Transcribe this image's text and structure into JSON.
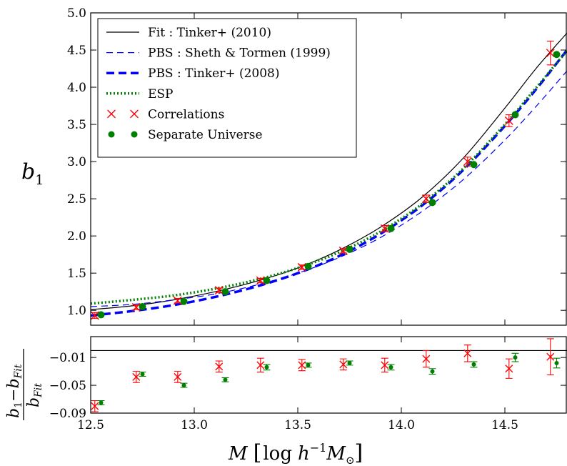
{
  "chart_data": [
    {
      "type": "line",
      "panel": "top",
      "ylabel": "b_1",
      "xlim": [
        12.5,
        14.8
      ],
      "ylim": [
        0.8,
        5.0
      ],
      "xticks": [
        12.5,
        13.0,
        13.5,
        14.0,
        14.5
      ],
      "xtick_labels": [
        "12.5",
        "13.0",
        "13.5",
        "14.0",
        "14.5"
      ],
      "yticks": [
        1.0,
        1.5,
        2.0,
        2.5,
        3.0,
        3.5,
        4.0,
        4.5,
        5.0
      ],
      "ytick_labels": [
        "1.0",
        "1.5",
        "2.0",
        "2.5",
        "3.0",
        "3.5",
        "4.0",
        "4.5",
        "5.0"
      ],
      "grid": false,
      "legend_position": "top-left",
      "series": [
        {
          "name": "Fit : Tinker+ (2010)",
          "style": "solid-thin",
          "color": "#000000",
          "x": [
            12.5,
            12.7,
            12.9,
            13.1,
            13.3,
            13.5,
            13.7,
            13.9,
            14.1,
            14.3,
            14.5,
            14.65,
            14.8
          ],
          "y": [
            1.01,
            1.06,
            1.14,
            1.25,
            1.39,
            1.57,
            1.81,
            2.12,
            2.52,
            3.05,
            3.72,
            4.25,
            4.73
          ]
        },
        {
          "name": "PBS : Sheth & Tormen (1999)",
          "style": "dashed-thin",
          "color": "#0000ff",
          "x": [
            12.5,
            12.7,
            12.9,
            13.1,
            13.3,
            13.5,
            13.7,
            13.9,
            14.1,
            14.3,
            14.5,
            14.65,
            14.8
          ],
          "y": [
            1.05,
            1.08,
            1.14,
            1.22,
            1.34,
            1.5,
            1.71,
            1.98,
            2.33,
            2.76,
            3.29,
            3.74,
            4.22
          ]
        },
        {
          "name": "PBS : Tinker+ (2008)",
          "style": "dashed-thick",
          "color": "#0000ff",
          "x": [
            12.5,
            12.7,
            12.9,
            13.1,
            13.3,
            13.5,
            13.7,
            13.9,
            14.1,
            14.3,
            14.5,
            14.65,
            14.8
          ],
          "y": [
            0.93,
            0.99,
            1.07,
            1.18,
            1.32,
            1.5,
            1.73,
            2.03,
            2.41,
            2.89,
            3.48,
            3.97,
            4.5
          ]
        },
        {
          "name": "ESP",
          "style": "dotted",
          "color": "#008000",
          "x": [
            12.5,
            12.7,
            12.9,
            13.1,
            13.3,
            13.5,
            13.7,
            13.9,
            14.1,
            14.3,
            14.5,
            14.65,
            14.8
          ],
          "y": [
            1.09,
            1.14,
            1.2,
            1.29,
            1.41,
            1.57,
            1.78,
            2.06,
            2.43,
            2.91,
            3.5,
            3.99,
            4.49
          ]
        },
        {
          "name": "Correlations",
          "style": "marker-x",
          "color": "#ff0000",
          "x": [
            12.52,
            12.72,
            12.92,
            13.12,
            13.32,
            13.52,
            13.72,
            13.92,
            14.12,
            14.32,
            14.52,
            14.72
          ],
          "y": [
            0.93,
            1.04,
            1.13,
            1.27,
            1.4,
            1.58,
            1.8,
            2.1,
            2.5,
            3.0,
            3.55,
            4.46
          ],
          "err": [
            0.04,
            0.03,
            0.03,
            0.03,
            0.03,
            0.03,
            0.03,
            0.04,
            0.05,
            0.06,
            0.08,
            0.16
          ]
        },
        {
          "name": "Separate Universe",
          "style": "marker-circle",
          "color": "#008000",
          "x": [
            12.55,
            12.75,
            12.95,
            13.15,
            13.35,
            13.55,
            13.75,
            13.95,
            14.15,
            14.35,
            14.55,
            14.75
          ],
          "y": [
            0.94,
            1.05,
            1.12,
            1.25,
            1.4,
            1.59,
            1.82,
            2.1,
            2.45,
            2.96,
            3.63,
            4.44
          ]
        }
      ]
    },
    {
      "type": "scatter",
      "panel": "bottom",
      "xlabel": "M [log h^{-1} M_⊙]",
      "ylabel": "(b_1 − b_Fit) / b_Fit",
      "xlim": [
        12.5,
        14.8
      ],
      "ylim": [
        -0.09,
        0.02
      ],
      "yticks": [
        -0.09,
        -0.05,
        -0.01
      ],
      "ytick_labels": [
        "−0.09",
        "−0.05",
        "−0.01"
      ],
      "reference_line": 0.0,
      "series": [
        {
          "name": "Correlations",
          "color": "#ff0000",
          "x": [
            12.52,
            12.72,
            12.92,
            13.12,
            13.32,
            13.52,
            13.72,
            13.92,
            14.12,
            14.32,
            14.52,
            14.72
          ],
          "y": [
            -0.08,
            -0.038,
            -0.038,
            -0.023,
            -0.021,
            -0.021,
            -0.02,
            -0.021,
            -0.012,
            -0.004,
            -0.026,
            -0.009
          ],
          "err": [
            0.008,
            0.008,
            0.008,
            0.008,
            0.01,
            0.008,
            0.008,
            0.01,
            0.012,
            0.012,
            0.014,
            0.026
          ]
        },
        {
          "name": "Separate Universe",
          "color": "#008000",
          "x": [
            12.55,
            12.75,
            12.95,
            13.15,
            13.35,
            13.55,
            13.75,
            13.95,
            14.15,
            14.35,
            14.55,
            14.75
          ],
          "y": [
            -0.075,
            -0.034,
            -0.05,
            -0.042,
            -0.024,
            -0.021,
            -0.018,
            -0.024,
            -0.03,
            -0.02,
            -0.01,
            -0.018
          ],
          "err": [
            0.003,
            0.003,
            0.003,
            0.003,
            0.004,
            0.003,
            0.003,
            0.004,
            0.004,
            0.004,
            0.006,
            0.007
          ]
        }
      ]
    }
  ],
  "text": {
    "top_ylabel_main": "b",
    "top_ylabel_sub": "1",
    "bottom_ylabel_num_b": "b",
    "bottom_ylabel_num_sub1": "1",
    "bottom_ylabel_num_minus": "−b",
    "bottom_ylabel_num_sub2": "Fit",
    "bottom_ylabel_den_b": "b",
    "bottom_ylabel_den_sub": "Fit",
    "xlabel_M": "M",
    "xlabel_open": "[",
    "xlabel_log": "log",
    "xlabel_h": "h",
    "xlabel_exp": "−1",
    "xlabel_Msun": "M",
    "xlabel_sun": "⊙",
    "xlabel_close": "]"
  }
}
